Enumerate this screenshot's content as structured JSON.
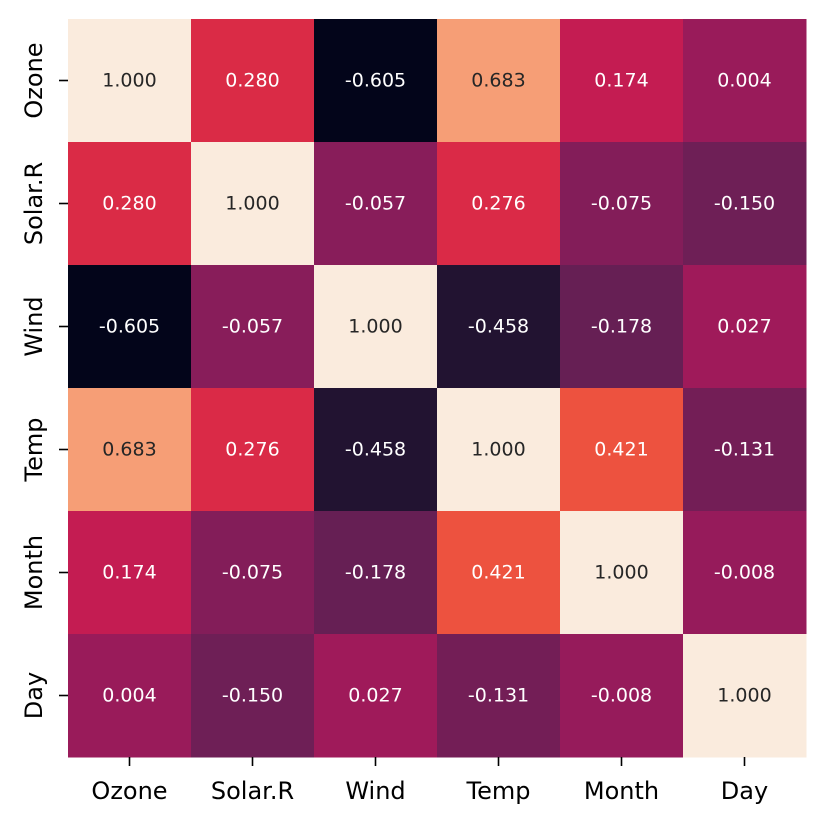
{
  "chart_data": {
    "type": "heatmap",
    "title": "",
    "xlabel": "",
    "ylabel": "",
    "x_categories": [
      "Ozone",
      "Solar.R",
      "Wind",
      "Temp",
      "Month",
      "Day"
    ],
    "y_categories": [
      "Ozone",
      "Solar.R",
      "Wind",
      "Temp",
      "Month",
      "Day"
    ],
    "values": [
      [
        1.0,
        0.28,
        -0.605,
        0.683,
        0.174,
        0.004
      ],
      [
        0.28,
        1.0,
        -0.057,
        0.276,
        -0.075,
        -0.15
      ],
      [
        -0.605,
        -0.057,
        1.0,
        -0.458,
        -0.178,
        0.027
      ],
      [
        0.683,
        0.276,
        -0.458,
        1.0,
        0.421,
        -0.131
      ],
      [
        0.174,
        -0.075,
        -0.178,
        0.421,
        1.0,
        -0.008
      ],
      [
        0.004,
        -0.15,
        0.027,
        -0.131,
        -0.008,
        1.0
      ]
    ],
    "value_labels": [
      [
        "1.000",
        "0.280",
        "-0.605",
        "0.683",
        "0.174",
        "0.004"
      ],
      [
        "0.280",
        "1.000",
        "-0.057",
        "0.276",
        "-0.075",
        "-0.150"
      ],
      [
        "-0.605",
        "-0.057",
        "1.000",
        "-0.458",
        "-0.178",
        "0.027"
      ],
      [
        "0.683",
        "0.276",
        "-0.458",
        "1.000",
        "0.421",
        "-0.131"
      ],
      [
        "0.174",
        "-0.075",
        "-0.178",
        "0.421",
        "1.000",
        "-0.008"
      ],
      [
        "0.004",
        "-0.150",
        "0.027",
        "-0.131",
        "-0.008",
        "1.000"
      ]
    ],
    "color_range": [
      -0.605,
      1.0
    ],
    "colormap": "rocket",
    "colorbar": false,
    "grid": false,
    "colors": {
      "rocket_stops": [
        "#03051a",
        "#221331",
        "#451c47",
        "#691f55",
        "#921c5b",
        "#b91657",
        "#d92847",
        "#ed513e",
        "#f47f58",
        "#f6a47c",
        "#f6c9aa",
        "#faebdd"
      ],
      "text_light": "#ffffff",
      "text_dark": "#262626"
    }
  }
}
